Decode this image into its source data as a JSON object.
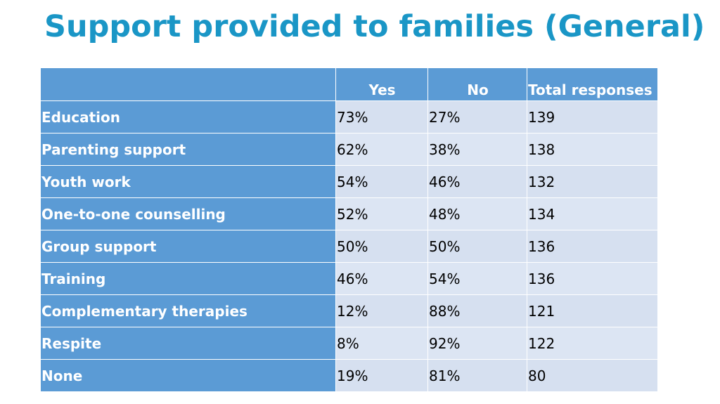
{
  "slide": {
    "title": "Support provided to families (General)"
  },
  "table": {
    "headers": [
      "",
      "Yes",
      "No",
      "Total responses"
    ],
    "rows": [
      {
        "label": "Education",
        "yes": "73%",
        "no": "27%",
        "total": "139"
      },
      {
        "label": "Parenting support",
        "yes": "62%",
        "no": "38%",
        "total": "138"
      },
      {
        "label": "Youth work",
        "yes": "54%",
        "no": "46%",
        "total": "132"
      },
      {
        "label": "One-to-one counselling",
        "yes": "52%",
        "no": "48%",
        "total": "134"
      },
      {
        "label": "Group support",
        "yes": "50%",
        "no": "50%",
        "total": "136"
      },
      {
        "label": "Training",
        "yes": "46%",
        "no": "54%",
        "total": "136"
      },
      {
        "label": "Complementary therapies",
        "yes": "12%",
        "no": "88%",
        "total": "121"
      },
      {
        "label": "Respite",
        "yes": "8%",
        "no": "92%",
        "total": "122"
      },
      {
        "label": "None",
        "yes": "19%",
        "no": "81%",
        "total": "80"
      }
    ]
  },
  "colors": {
    "title": "#1a96c6",
    "header_fill": "#5b9bd5",
    "cell_fill": "#d6e0f0"
  }
}
